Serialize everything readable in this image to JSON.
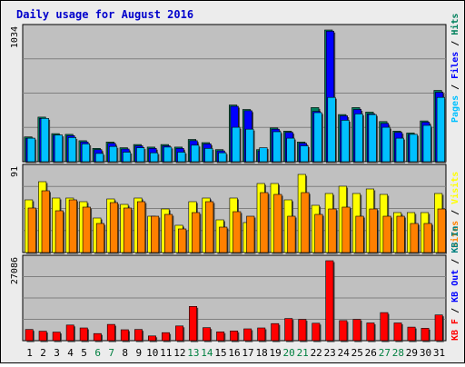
{
  "title": "Daily usage for August 2016",
  "colors": {
    "background": "#ececec",
    "plot_bg": "#c0c0c0",
    "title": "#0000cc",
    "hits": "#00805c",
    "files": "#0000ff",
    "pages": "#00c0ff",
    "visits": "#ffff00",
    "sites": "#ff8000",
    "kb_in": "#008080",
    "kb_out": "#0000ff",
    "kb_f": "#ff0000",
    "weekday_label": "#000000",
    "weekend_label": "#008040"
  },
  "chart_data": {
    "type": "bar",
    "title": "Daily usage for August 2016",
    "categories": [
      "1",
      "2",
      "3",
      "4",
      "5",
      "6",
      "7",
      "8",
      "9",
      "10",
      "11",
      "12",
      "13",
      "14",
      "15",
      "16",
      "17",
      "18",
      "19",
      "20",
      "21",
      "22",
      "23",
      "24",
      "25",
      "26",
      "27",
      "28",
      "29",
      "30",
      "31"
    ],
    "weekend_days": [
      "6",
      "7",
      "13",
      "14",
      "20",
      "21",
      "27",
      "28"
    ],
    "panels": [
      {
        "name": "top",
        "ymax_label": "1034",
        "ymax": 1034,
        "right_label": [
          "Hits",
          "Files",
          "Pages"
        ],
        "series": [
          {
            "name": "Hits",
            "values": [
              195,
              350,
              220,
              215,
              165,
              105,
              155,
              110,
              135,
              115,
              135,
              115,
              175,
              150,
              95,
              445,
              410,
              95,
              265,
              240,
              155,
              425,
              1034,
              370,
              425,
              390,
              315,
              240,
              225,
              320,
              560
            ]
          },
          {
            "name": "Files",
            "values": [
              185,
              340,
              210,
              205,
              155,
              95,
              145,
              100,
              125,
              105,
              125,
              105,
              165,
              140,
              85,
              435,
              400,
              85,
              255,
              230,
              145,
              395,
              1025,
              360,
              410,
              375,
              300,
              230,
              215,
              310,
              545
            ]
          },
          {
            "name": "Pages",
            "values": [
              185,
              340,
              210,
              190,
              140,
              65,
              120,
              75,
              110,
              70,
              115,
              75,
              130,
              105,
              70,
              270,
              255,
              110,
              235,
              185,
              125,
              385,
              505,
              325,
              375,
              370,
              270,
              185,
              215,
              285,
              505
            ]
          }
        ]
      },
      {
        "name": "middle",
        "ymax_label": "91",
        "ymax": 91,
        "right_label": [
          "Visits",
          "Sites"
        ],
        "series": [
          {
            "name": "Visits",
            "values": [
              58,
              78,
              60,
              60,
              56,
              38,
              59,
              53,
              60,
              40,
              48,
              30,
              56,
              60,
              36,
              60,
              33,
              76,
              76,
              58,
              86,
              52,
              65,
              73,
              65,
              70,
              64,
              44,
              44,
              44,
              65
            ]
          },
          {
            "name": "Sites",
            "values": [
              49,
              68,
              46,
              58,
              50,
              32,
              55,
              49,
              56,
              40,
              42,
              26,
              44,
              56,
              28,
              45,
              40,
              66,
              64,
              40,
              66,
              42,
              48,
              50,
              40,
              48,
              40,
              40,
              32,
              32,
              48
            ]
          }
        ]
      },
      {
        "name": "bottom",
        "ymax_label": "27086",
        "ymax": 27086,
        "right_label": [
          "KB In",
          "KB Out",
          "KB F"
        ],
        "series": [
          {
            "name": "KB F",
            "values": [
              3800,
              3200,
              2900,
              5300,
              4300,
              2400,
              5500,
              3700,
              3800,
              1600,
              2700,
              5000,
              11600,
              4400,
              3000,
              3300,
              4000,
              4300,
              5800,
              7500,
              7200,
              5900,
              27086,
              6800,
              7200,
              6000,
              9500,
              6000,
              4600,
              4200,
              8700
            ]
          }
        ]
      }
    ]
  }
}
